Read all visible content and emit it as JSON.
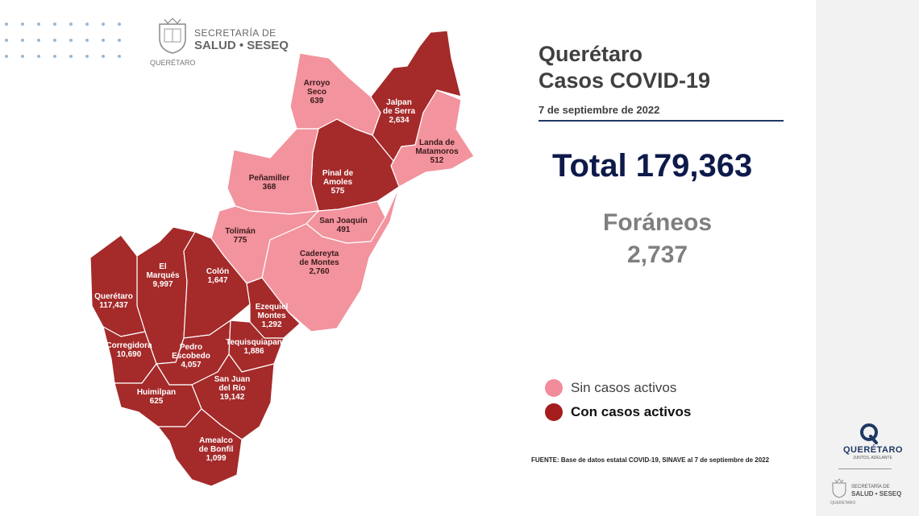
{
  "header": {
    "agency_line1": "SECRETARÍA DE",
    "agency_line2": "SALUD • SESEQ",
    "agency_small": "QUERÉTARO"
  },
  "summary": {
    "title_line1": "Querétaro",
    "title_line2": "Casos COVID-19",
    "date": "7 de septiembre de 2022",
    "total": "Total 179,363",
    "foraneos_label": "Foráneos",
    "foraneos_value": "2,737"
  },
  "legend": {
    "sin": {
      "label": "Sin casos activos",
      "color": "#f28b9a"
    },
    "con": {
      "label": "Con casos activos",
      "color": "#a51c1c"
    }
  },
  "colors": {
    "con": "#a52a2a",
    "sin": "#f2939e"
  },
  "municipalities": [
    {
      "id": "arroyo-seco",
      "name_lines": [
        "Arroyo",
        "Seco"
      ],
      "cases": "639",
      "status": "sin"
    },
    {
      "id": "jalpan",
      "name_lines": [
        "Jalpan",
        "de Serra"
      ],
      "cases": "2,634",
      "status": "con"
    },
    {
      "id": "landa",
      "name_lines": [
        "Landa de",
        "Matamoros"
      ],
      "cases": "512",
      "status": "sin"
    },
    {
      "id": "pinal",
      "name_lines": [
        "Pinal de",
        "Amoles"
      ],
      "cases": "575",
      "status": "con"
    },
    {
      "id": "penamiller",
      "name_lines": [
        "Peñamiller"
      ],
      "cases": "368",
      "status": "sin"
    },
    {
      "id": "san-joaquin",
      "name_lines": [
        "San Joaquín"
      ],
      "cases": "491",
      "status": "sin"
    },
    {
      "id": "toliman",
      "name_lines": [
        "Tolimán"
      ],
      "cases": "775",
      "status": "sin"
    },
    {
      "id": "cadereyta",
      "name_lines": [
        "Cadereyta",
        "de Montes"
      ],
      "cases": "2,760",
      "status": "sin"
    },
    {
      "id": "el-marques",
      "name_lines": [
        "El",
        "Marqués"
      ],
      "cases": "9,997",
      "status": "con"
    },
    {
      "id": "colon",
      "name_lines": [
        "Colón"
      ],
      "cases": "1,647",
      "status": "con"
    },
    {
      "id": "queretaro",
      "name_lines": [
        "Querétaro"
      ],
      "cases": "117,437",
      "status": "con"
    },
    {
      "id": "ezequiel",
      "name_lines": [
        "Ezequiel",
        "Montes"
      ],
      "cases": "1,292",
      "status": "con"
    },
    {
      "id": "corregidora",
      "name_lines": [
        "Corregidora"
      ],
      "cases": "10,690",
      "status": "con"
    },
    {
      "id": "pedro",
      "name_lines": [
        "Pedro",
        "Escobedo"
      ],
      "cases": "4,057",
      "status": "con"
    },
    {
      "id": "tequisquiapan",
      "name_lines": [
        "Tequisquiapan"
      ],
      "cases": "1,886",
      "status": "con"
    },
    {
      "id": "san-juan",
      "name_lines": [
        "San Juan",
        "del Río"
      ],
      "cases": "19,142",
      "status": "con"
    },
    {
      "id": "huimilpan",
      "name_lines": [
        "Huimilpan"
      ],
      "cases": "625",
      "status": "con"
    },
    {
      "id": "amealco",
      "name_lines": [
        "Amealco",
        "de Bonfil"
      ],
      "cases": "1,099",
      "status": "con"
    }
  ],
  "fuente": "FUENTE: Base de datos estatal  COVID-19,  SINAVE  al 7 de septiembre de 2022",
  "sidebar": {
    "brand": "QUERÉTARO",
    "slogan": "JUNTOS, ADELANTE",
    "agency_line1": "SECRETARÍA DE",
    "agency_line2": "SALUD • SESEQ",
    "agency_small": "QUERÉTARO"
  }
}
